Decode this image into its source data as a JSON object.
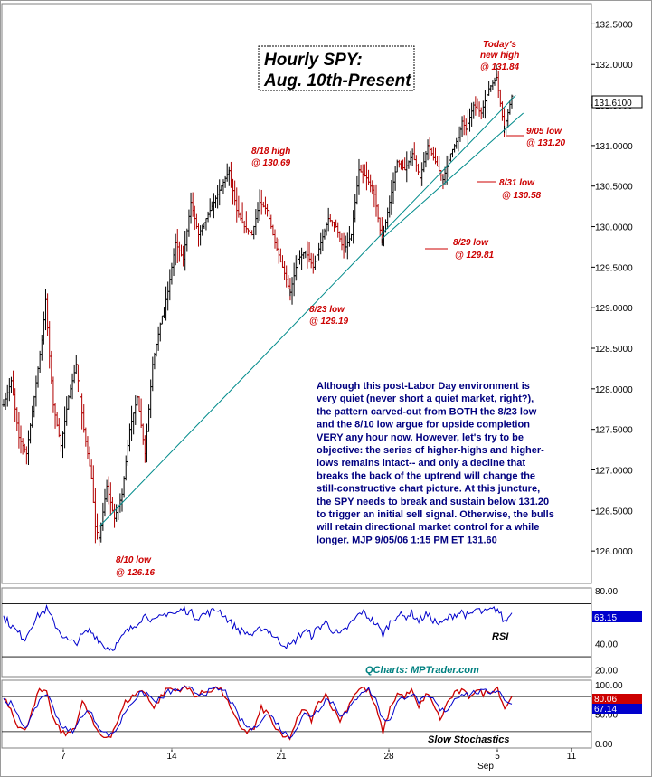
{
  "chart_data": [
    {
      "type": "line",
      "subtype": "ohlc-bars",
      "title_lines": [
        "Hourly SPY:",
        "Aug. 10th-Present"
      ],
      "ylim": [
        125.6,
        132.75
      ],
      "y_ticks": [
        "132.5000",
        "132.0000",
        "131.5000",
        "131.0000",
        "130.5000",
        "130.0000",
        "129.5000",
        "129.0000",
        "128.5000",
        "128.0000",
        "127.5000",
        "127.0000",
        "126.5000",
        "126.0000"
      ],
      "y_tick_values": [
        132.5,
        132.0,
        131.5,
        131.0,
        130.5,
        130.0,
        129.5,
        129.0,
        128.5,
        128.0,
        127.5,
        127.0,
        126.5,
        126.0
      ],
      "x_ticks": [
        "7",
        "14",
        "21",
        "28",
        "5",
        "11"
      ],
      "x_tick_sublabel": "Sep",
      "last_price_label": "131.6100",
      "last_price": 131.61,
      "price_path_x": [
        0,
        2,
        4,
        6,
        8,
        10,
        11,
        12,
        13,
        15,
        17,
        19,
        21,
        23,
        24,
        25,
        27,
        29,
        31,
        33,
        35,
        37,
        39,
        41,
        43,
        45,
        47,
        49,
        51,
        53,
        55,
        57,
        59,
        61,
        63,
        65,
        67,
        69,
        71,
        73,
        75,
        77,
        79,
        81,
        83,
        85,
        87,
        89,
        91,
        92,
        93,
        95,
        97,
        99,
        101,
        103,
        105,
        107,
        109,
        111,
        113,
        115,
        117,
        119,
        120,
        121,
        123,
        125,
        127,
        129,
        131,
        133
      ],
      "price_path_y": [
        127.8,
        128.1,
        127.4,
        127.2,
        127.9,
        128.6,
        129.1,
        128.4,
        127.8,
        127.3,
        127.9,
        128.3,
        127.5,
        126.9,
        126.3,
        126.16,
        126.8,
        126.4,
        126.7,
        127.5,
        127.9,
        127.2,
        128.3,
        128.8,
        129.2,
        129.8,
        129.6,
        130.3,
        129.9,
        130.1,
        130.3,
        130.5,
        130.69,
        130.2,
        130.0,
        129.9,
        130.3,
        130.2,
        129.8,
        129.5,
        129.19,
        129.6,
        129.7,
        129.5,
        129.8,
        130.1,
        130.0,
        129.7,
        129.9,
        130.3,
        130.7,
        130.6,
        130.4,
        129.81,
        130.3,
        130.8,
        130.7,
        130.9,
        130.6,
        131.0,
        130.8,
        130.58,
        130.9,
        131.1,
        131.3,
        131.2,
        131.5,
        131.4,
        131.7,
        131.84,
        131.2,
        131.61
      ],
      "trendlines": [
        {
          "x": [
            25,
            134
          ],
          "y": [
            126.3,
            131.62
          ]
        },
        {
          "x": [
            99,
            136
          ],
          "y": [
            129.85,
            131.4
          ]
        }
      ],
      "annotations": [
        {
          "lines": [
            "Today's",
            "new high",
            "@ 131.84"
          ]
        },
        {
          "lines": [
            "9/05 low",
            "@ 131.20"
          ]
        },
        {
          "lines": [
            "8/18 high",
            "@ 130.69"
          ]
        },
        {
          "lines": [
            "8/31 low",
            "@ 130.58"
          ]
        },
        {
          "lines": [
            "8/29 low",
            "@ 129.81"
          ]
        },
        {
          "lines": [
            "8/23 low",
            "@ 129.19"
          ]
        },
        {
          "lines": [
            "8/10 low",
            "@ 126.16"
          ]
        }
      ],
      "commentary_lines": [
        "Although this post-Labor Day environment is",
        "very quiet (never short a quiet market, right?),",
        "the pattern carved-out from BOTH the 8/23 low",
        "and the 8/10 low argue for upside completion",
        "VERY any hour now. However, let's try to be",
        "objective: the series of higher-highs and higher-",
        "lows remains intact-- and only a decline that",
        "breaks the back of the uptrend will change the",
        "still-constructive chart picture.  At this juncture,",
        "the SPY needs to break and sustain below 131.20",
        "to trigger an initial sell signal. Otherwise, the bulls",
        "will retain directional market control for a while",
        "longer.  MJP  9/05/06 1:15 PM ET 131.60"
      ]
    },
    {
      "type": "line",
      "name": "RSI",
      "ylim": [
        15,
        82
      ],
      "y_ticks": [
        "80.00",
        "60.00",
        "40.00",
        "20.00"
      ],
      "y_tick_values": [
        80,
        60,
        40,
        20
      ],
      "last_value_label": "63.15",
      "last_value": 63.15,
      "values": [
        60,
        54,
        48,
        44,
        55,
        62,
        66,
        56,
        48,
        42,
        40,
        46,
        50,
        45,
        38,
        36,
        40,
        48,
        52,
        58,
        62,
        56,
        60,
        64,
        62,
        66,
        64,
        60,
        62,
        64,
        66,
        60,
        54,
        50,
        48,
        46,
        52,
        50,
        44,
        40,
        38,
        44,
        50,
        46,
        52,
        56,
        50,
        46,
        52,
        58,
        64,
        60,
        55,
        47,
        56,
        62,
        60,
        63,
        57,
        62,
        58,
        54,
        59,
        62,
        64,
        60,
        66,
        63,
        65,
        66,
        56,
        63.15
      ]
    },
    {
      "type": "line",
      "name": "Slow Stochastics",
      "ylim": [
        -8,
        108
      ],
      "y_ticks": [
        "100.00",
        "50.00",
        "0.00"
      ],
      "y_tick_values": [
        100,
        50,
        0
      ],
      "last_values_labels": [
        "80.06",
        "67.14"
      ],
      "k_values": [
        80,
        60,
        30,
        20,
        60,
        90,
        85,
        40,
        20,
        15,
        30,
        70,
        50,
        20,
        10,
        15,
        40,
        70,
        80,
        90,
        85,
        60,
        80,
        95,
        90,
        95,
        92,
        80,
        88,
        92,
        95,
        80,
        50,
        30,
        20,
        25,
        60,
        50,
        25,
        10,
        10,
        40,
        60,
        40,
        70,
        85,
        60,
        40,
        60,
        85,
        95,
        90,
        60,
        20,
        60,
        85,
        80,
        90,
        60,
        85,
        70,
        40,
        70,
        85,
        90,
        80,
        92,
        85,
        90,
        95,
        60,
        80.06
      ],
      "d_values": [
        75,
        68,
        45,
        28,
        45,
        75,
        86,
        60,
        32,
        20,
        24,
        50,
        55,
        35,
        18,
        14,
        28,
        55,
        72,
        84,
        86,
        72,
        75,
        88,
        90,
        93,
        93,
        86,
        86,
        90,
        93,
        88,
        65,
        42,
        28,
        24,
        42,
        50,
        38,
        20,
        12,
        28,
        50,
        48,
        58,
        76,
        70,
        50,
        52,
        72,
        90,
        92,
        75,
        40,
        42,
        70,
        80,
        85,
        72,
        76,
        76,
        56,
        58,
        76,
        86,
        84,
        88,
        88,
        88,
        92,
        76,
        67.14
      ]
    }
  ],
  "credit": "QCharts: MPTrader.com",
  "colors": {
    "up_bar": "#000000",
    "down_bar": "#b00000",
    "trendline": "#008b8b",
    "annotation": "#cc0000",
    "commentary": "#000080",
    "rsi_line": "#0000cc",
    "stoch_k": "#cc0000",
    "stoch_d": "#0000cc",
    "badge_blue": "#0000cc",
    "badge_red": "#cc0000"
  }
}
